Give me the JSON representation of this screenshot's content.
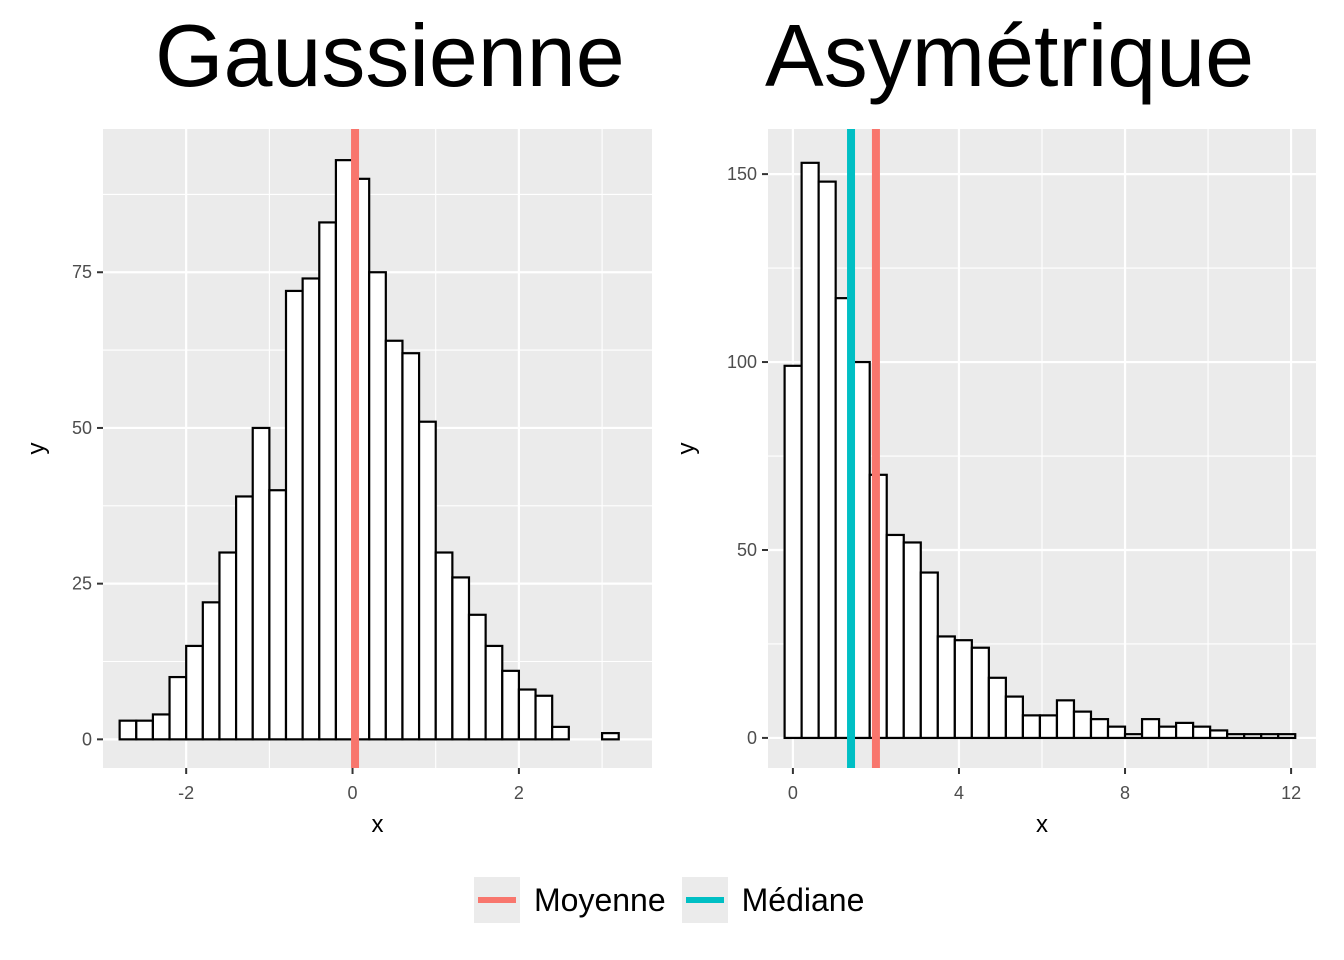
{
  "chart_data": [
    {
      "type": "bar",
      "title": "Gaussienne",
      "xlabel": "x",
      "ylabel": "y",
      "xlim": [
        -3.0,
        3.6
      ],
      "ylim": [
        -4.6,
        98
      ],
      "xticks": [
        -2,
        0,
        2
      ],
      "yticks": [
        0,
        25,
        50,
        75
      ],
      "bin_start": -2.8,
      "bin_width": 0.2,
      "values": [
        3,
        3,
        4,
        10,
        15,
        22,
        30,
        39,
        50,
        40,
        72,
        74,
        83,
        93,
        90,
        75,
        64,
        62,
        51,
        30,
        26,
        20,
        15,
        11,
        8,
        7,
        2,
        0,
        0,
        1
      ],
      "vlines": [
        {
          "name": "Moyenne",
          "x": 0.03
        }
      ]
    },
    {
      "type": "bar",
      "title": "Asymétrique",
      "xlabel": "x",
      "ylabel": "y",
      "xlim": [
        -0.6,
        12.6
      ],
      "ylim": [
        -8,
        162
      ],
      "xticks": [
        0,
        4,
        8,
        12
      ],
      "yticks": [
        0,
        50,
        100,
        150
      ],
      "bin_start": -0.2,
      "bin_width": 0.41,
      "values": [
        99,
        153,
        148,
        117,
        100,
        70,
        54,
        52,
        44,
        27,
        26,
        24,
        16,
        11,
        6,
        6,
        10,
        7,
        5,
        3,
        1,
        5,
        3,
        4,
        3,
        2,
        1,
        1,
        1,
        1
      ],
      "vlines": [
        {
          "name": "Médiane",
          "x": 1.4
        },
        {
          "name": "Moyenne",
          "x": 2.0
        }
      ]
    }
  ],
  "legend": {
    "items": [
      {
        "label": "Moyenne",
        "color": "#F8766D"
      },
      {
        "label": "Médiane",
        "color": "#00BFC4"
      }
    ]
  },
  "colors": {
    "panel": "#ebebeb",
    "grid": "#ffffff",
    "bar_fill": "#ffffff",
    "bar_stroke": "#000000"
  }
}
